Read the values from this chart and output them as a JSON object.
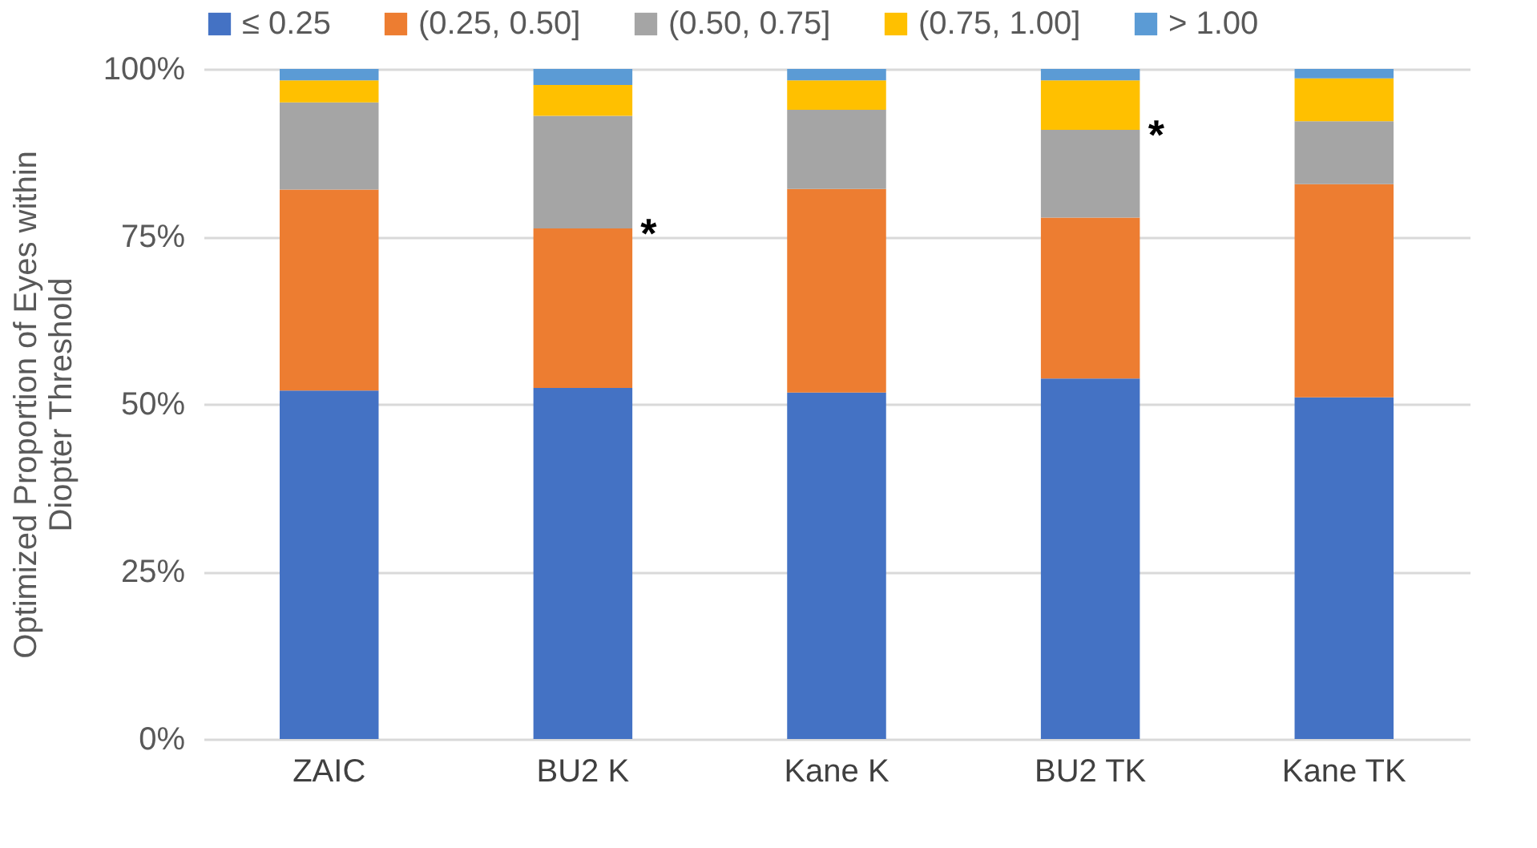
{
  "chart_data": {
    "type": "bar",
    "stacked": true,
    "ylabel": "Optimized Proportion of Eyes within Diopter Threshold",
    "categories": [
      "ZAIC",
      "BU2 K",
      "Kane K",
      "BU2 TK",
      "Kane TK"
    ],
    "series": [
      {
        "name": "≤ 0.25",
        "color": "#4472c4",
        "values": [
          52,
          52.4,
          51.7,
          53.8,
          51.0
        ]
      },
      {
        "name": "(0.25, 0.50]",
        "color": "#ed7d31",
        "values": [
          30,
          23.8,
          30.4,
          24.0,
          31.8
        ]
      },
      {
        "name": "(0.50, 0.75]",
        "color": "#a5a5a5",
        "values": [
          13,
          16.8,
          11.8,
          13.1,
          9.4
        ]
      },
      {
        "name": "(0.75, 1.00]",
        "color": "#ffc000",
        "values": [
          3.3,
          4.6,
          4.4,
          7.4,
          6.4
        ]
      },
      {
        "name": "> 1.00",
        "color": "#5b9bd5",
        "values": [
          1.7,
          2.4,
          1.7,
          1.7,
          1.4
        ]
      }
    ],
    "ylim": [
      0,
      100
    ],
    "yticks": [
      {
        "value": 0,
        "label": "0%"
      },
      {
        "value": 25,
        "label": "25%"
      },
      {
        "value": 50,
        "label": "50%"
      },
      {
        "value": 75,
        "label": "75%"
      },
      {
        "value": 100,
        "label": "100%"
      }
    ],
    "grid": "y",
    "legend": "top",
    "annotations": [
      {
        "text": "*",
        "x": "BU2 K",
        "y": 76.2
      },
      {
        "text": "*",
        "x": "BU2 TK",
        "y": 90.9
      }
    ]
  }
}
